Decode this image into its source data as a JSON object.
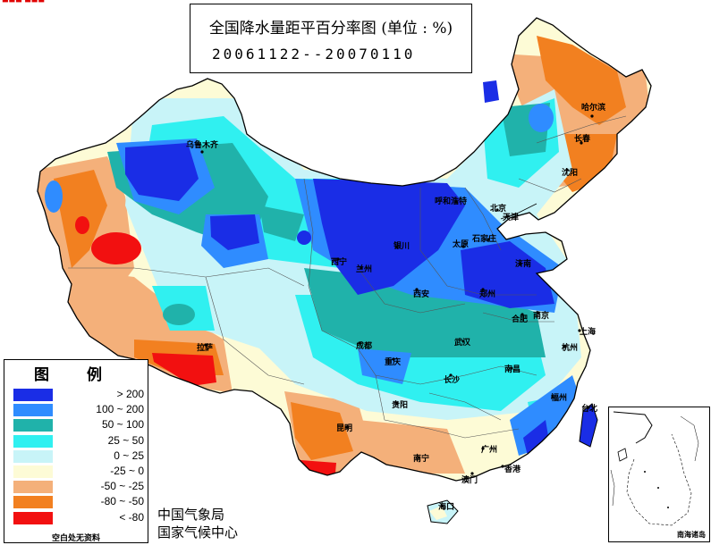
{
  "title": {
    "main": "全国降水量距平百分率图 (单位 : %)",
    "dates": "20061122--20070110"
  },
  "legend": {
    "heading": "图  例",
    "items": [
      {
        "label": "> 200",
        "color": "#1a2de6"
      },
      {
        "label": "100 ~ 200",
        "color": "#2f8cff"
      },
      {
        "label": "50 ~ 100",
        "color": "#20b2aa"
      },
      {
        "label": "25 ~ 50",
        "color": "#30f0f0"
      },
      {
        "label": "0 ~ 25",
        "color": "#c8f4f8"
      },
      {
        "label": "-25 ~ 0",
        "color": "#fdfbd6"
      },
      {
        "label": "-50 ~ -25",
        "color": "#f4b07a"
      },
      {
        "label": "-80 ~ -50",
        "color": "#f28020"
      },
      {
        "label": "< -80",
        "color": "#f21010"
      }
    ],
    "note": "空白处无资料"
  },
  "credits": {
    "line1": "中国气象局",
    "line2": "国家气候中心"
  },
  "inset": {
    "label": "南海诸岛"
  },
  "corner_mark": "▬▬▬ ▬▬▬",
  "cities": [
    {
      "name": "乌鲁木齐"
    },
    {
      "name": "哈尔滨"
    },
    {
      "name": "长春"
    },
    {
      "name": "沈阳"
    },
    {
      "name": "呼和浩特"
    },
    {
      "name": "北京"
    },
    {
      "name": "天津"
    },
    {
      "name": "石家庄"
    },
    {
      "name": "太原"
    },
    {
      "name": "济南"
    },
    {
      "name": "银川"
    },
    {
      "name": "西宁"
    },
    {
      "name": "兰州"
    },
    {
      "name": "郑州"
    },
    {
      "name": "西安"
    },
    {
      "name": "合肥"
    },
    {
      "name": "南京"
    },
    {
      "name": "上海"
    },
    {
      "name": "拉萨"
    },
    {
      "name": "成都"
    },
    {
      "name": "重庆"
    },
    {
      "name": "武汉"
    },
    {
      "name": "杭州"
    },
    {
      "name": "长沙"
    },
    {
      "name": "南昌"
    },
    {
      "name": "贵阳"
    },
    {
      "name": "福州"
    },
    {
      "name": "台北"
    },
    {
      "name": "昆明"
    },
    {
      "name": "南宁"
    },
    {
      "name": "广州"
    },
    {
      "name": "香港"
    },
    {
      "name": "澳门"
    },
    {
      "name": "海口"
    }
  ]
}
